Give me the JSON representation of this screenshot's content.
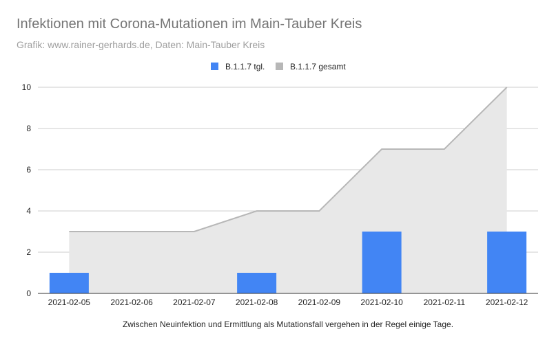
{
  "chart_data": {
    "type": "bar",
    "title": "Infektionen mit Corona-Mutationen im Main-Tauber Kreis",
    "subtitle": "Grafik: www.rainer-gerhards.de, Daten: Main-Tauber Kreis",
    "xlabel": "Zwischen Neuinfektion und Ermittlung als Mutationsfall vergehen in der Regel einige Tage.",
    "ylabel": "",
    "ylim": [
      0,
      10
    ],
    "yticks": [
      "0",
      "2",
      "4",
      "6",
      "8",
      "10"
    ],
    "grid": true,
    "legend_position": "top",
    "categories": [
      "2021-02-05",
      "2021-02-06",
      "2021-02-07",
      "2021-02-08",
      "2021-02-09",
      "2021-02-10",
      "2021-02-11",
      "2021-02-12"
    ],
    "series": [
      {
        "name": "B.1.1.7 tgl.",
        "kind": "bar",
        "color": "#4285f4",
        "values": [
          1,
          0,
          0,
          1,
          0,
          3,
          0,
          3
        ]
      },
      {
        "name": "B.1.1.7 gesamt",
        "kind": "area",
        "color": "#b7b7b7",
        "values": [
          3,
          3,
          3,
          4,
          4,
          7,
          7,
          10
        ]
      }
    ]
  }
}
